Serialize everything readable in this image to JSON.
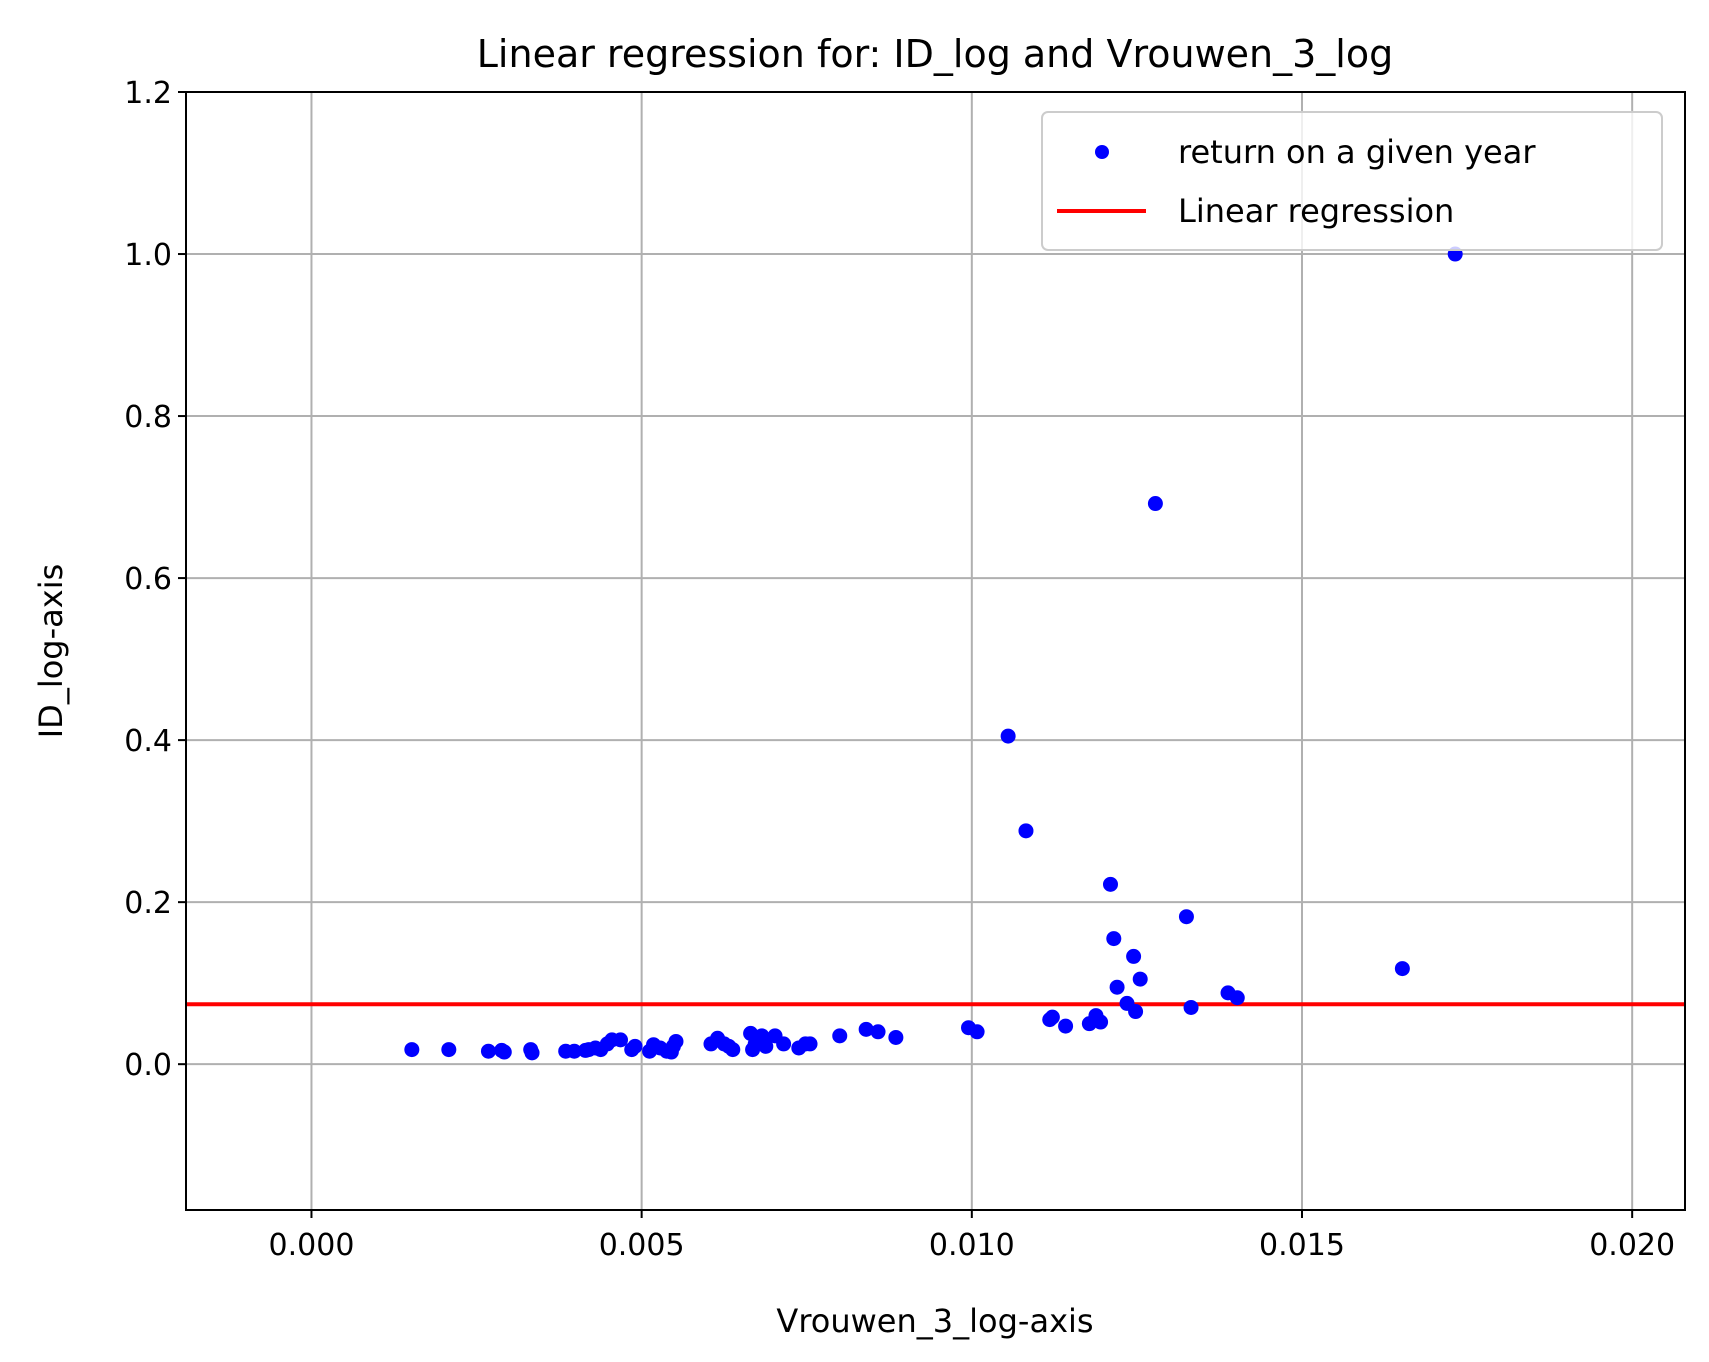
{
  "chart_data": {
    "type": "scatter",
    "title": "Linear regression for: ID_log and Vrouwen_3_log",
    "xlabel": "Vrouwen_3_log-axis",
    "ylabel": "ID_log-axis",
    "xlim": [
      -0.0019,
      0.0208
    ],
    "ylim": [
      -0.18,
      1.2
    ],
    "xticks": [
      0.0,
      0.005,
      0.01,
      0.015,
      0.02
    ],
    "xtick_labels": [
      "0.000",
      "0.005",
      "0.010",
      "0.015",
      "0.020"
    ],
    "yticks": [
      0.0,
      0.2,
      0.4,
      0.6,
      0.8,
      1.0,
      1.2
    ],
    "ytick_labels": [
      "0.0",
      "0.2",
      "0.4",
      "0.6",
      "0.8",
      "1.0",
      "1.2"
    ],
    "grid": true,
    "legend_position": "top-right",
    "series": [
      {
        "name": "return on a given year",
        "kind": "scatter",
        "color": "#0000ff",
        "points": [
          [
            0.00152,
            0.018
          ],
          [
            0.00208,
            0.018
          ],
          [
            0.00268,
            0.016
          ],
          [
            0.00288,
            0.017
          ],
          [
            0.00292,
            0.015
          ],
          [
            0.00332,
            0.018
          ],
          [
            0.00334,
            0.014
          ],
          [
            0.00385,
            0.016
          ],
          [
            0.00398,
            0.016
          ],
          [
            0.00415,
            0.017
          ],
          [
            0.0042,
            0.018
          ],
          [
            0.0043,
            0.02
          ],
          [
            0.00438,
            0.018
          ],
          [
            0.00448,
            0.025
          ],
          [
            0.00455,
            0.03
          ],
          [
            0.00468,
            0.03
          ],
          [
            0.00485,
            0.018
          ],
          [
            0.0049,
            0.022
          ],
          [
            0.00512,
            0.016
          ],
          [
            0.00518,
            0.024
          ],
          [
            0.00528,
            0.02
          ],
          [
            0.00538,
            0.016
          ],
          [
            0.00545,
            0.015
          ],
          [
            0.00548,
            0.022
          ],
          [
            0.00552,
            0.028
          ],
          [
            0.00605,
            0.025
          ],
          [
            0.00615,
            0.032
          ],
          [
            0.00625,
            0.025
          ],
          [
            0.00632,
            0.022
          ],
          [
            0.00638,
            0.018
          ],
          [
            0.00665,
            0.038
          ],
          [
            0.00668,
            0.018
          ],
          [
            0.00672,
            0.025
          ],
          [
            0.00682,
            0.035
          ],
          [
            0.00688,
            0.022
          ],
          [
            0.00702,
            0.035
          ],
          [
            0.00715,
            0.025
          ],
          [
            0.00738,
            0.02
          ],
          [
            0.00748,
            0.025
          ],
          [
            0.00755,
            0.025
          ],
          [
            0.008,
            0.035
          ],
          [
            0.0084,
            0.043
          ],
          [
            0.00858,
            0.04
          ],
          [
            0.00885,
            0.033
          ],
          [
            0.00995,
            0.045
          ],
          [
            0.01008,
            0.04
          ],
          [
            0.01055,
            0.405
          ],
          [
            0.01082,
            0.288
          ],
          [
            0.01118,
            0.055
          ],
          [
            0.01122,
            0.058
          ],
          [
            0.01142,
            0.047
          ],
          [
            0.01178,
            0.05
          ],
          [
            0.01188,
            0.06
          ],
          [
            0.01195,
            0.052
          ],
          [
            0.0121,
            0.222
          ],
          [
            0.01215,
            0.155
          ],
          [
            0.0122,
            0.095
          ],
          [
            0.01235,
            0.075
          ],
          [
            0.01245,
            0.133
          ],
          [
            0.01248,
            0.065
          ],
          [
            0.01255,
            0.105
          ],
          [
            0.01278,
            0.692
          ],
          [
            0.01325,
            0.182
          ],
          [
            0.01332,
            0.07
          ],
          [
            0.01388,
            0.088
          ],
          [
            0.01402,
            0.082
          ],
          [
            0.01652,
            0.118
          ],
          [
            0.01732,
            1.0
          ]
        ]
      },
      {
        "name": "Linear regression",
        "kind": "line",
        "color": "#ff0000",
        "x": [
          -0.0019,
          0.0208
        ],
        "y": [
          0.074,
          0.074
        ]
      }
    ]
  }
}
